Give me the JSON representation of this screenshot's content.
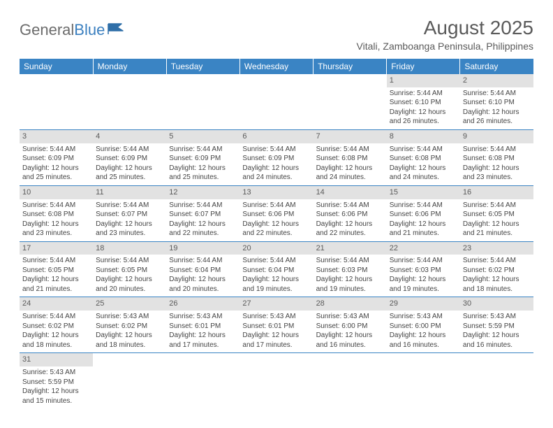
{
  "logo": {
    "text1": "General",
    "text2": "Blue",
    "flag_color": "#2f6fa8"
  },
  "title": "August 2025",
  "location": "Vitali, Zamboanga Peninsula, Philippines",
  "headers": [
    "Sunday",
    "Monday",
    "Tuesday",
    "Wednesday",
    "Thursday",
    "Friday",
    "Saturday"
  ],
  "colors": {
    "header_bg": "#3a84c4",
    "header_fg": "#ffffff",
    "daynum_bg": "#e2e2e2",
    "rule": "#3a84c4",
    "text": "#444444"
  },
  "weeks": [
    [
      {
        "day": "",
        "lines": []
      },
      {
        "day": "",
        "lines": []
      },
      {
        "day": "",
        "lines": []
      },
      {
        "day": "",
        "lines": []
      },
      {
        "day": "",
        "lines": []
      },
      {
        "day": "1",
        "lines": [
          "Sunrise: 5:44 AM",
          "Sunset: 6:10 PM",
          "Daylight: 12 hours",
          "and 26 minutes."
        ]
      },
      {
        "day": "2",
        "lines": [
          "Sunrise: 5:44 AM",
          "Sunset: 6:10 PM",
          "Daylight: 12 hours",
          "and 26 minutes."
        ]
      }
    ],
    [
      {
        "day": "3",
        "lines": [
          "Sunrise: 5:44 AM",
          "Sunset: 6:09 PM",
          "Daylight: 12 hours",
          "and 25 minutes."
        ]
      },
      {
        "day": "4",
        "lines": [
          "Sunrise: 5:44 AM",
          "Sunset: 6:09 PM",
          "Daylight: 12 hours",
          "and 25 minutes."
        ]
      },
      {
        "day": "5",
        "lines": [
          "Sunrise: 5:44 AM",
          "Sunset: 6:09 PM",
          "Daylight: 12 hours",
          "and 25 minutes."
        ]
      },
      {
        "day": "6",
        "lines": [
          "Sunrise: 5:44 AM",
          "Sunset: 6:09 PM",
          "Daylight: 12 hours",
          "and 24 minutes."
        ]
      },
      {
        "day": "7",
        "lines": [
          "Sunrise: 5:44 AM",
          "Sunset: 6:08 PM",
          "Daylight: 12 hours",
          "and 24 minutes."
        ]
      },
      {
        "day": "8",
        "lines": [
          "Sunrise: 5:44 AM",
          "Sunset: 6:08 PM",
          "Daylight: 12 hours",
          "and 24 minutes."
        ]
      },
      {
        "day": "9",
        "lines": [
          "Sunrise: 5:44 AM",
          "Sunset: 6:08 PM",
          "Daylight: 12 hours",
          "and 23 minutes."
        ]
      }
    ],
    [
      {
        "day": "10",
        "lines": [
          "Sunrise: 5:44 AM",
          "Sunset: 6:08 PM",
          "Daylight: 12 hours",
          "and 23 minutes."
        ]
      },
      {
        "day": "11",
        "lines": [
          "Sunrise: 5:44 AM",
          "Sunset: 6:07 PM",
          "Daylight: 12 hours",
          "and 23 minutes."
        ]
      },
      {
        "day": "12",
        "lines": [
          "Sunrise: 5:44 AM",
          "Sunset: 6:07 PM",
          "Daylight: 12 hours",
          "and 22 minutes."
        ]
      },
      {
        "day": "13",
        "lines": [
          "Sunrise: 5:44 AM",
          "Sunset: 6:06 PM",
          "Daylight: 12 hours",
          "and 22 minutes."
        ]
      },
      {
        "day": "14",
        "lines": [
          "Sunrise: 5:44 AM",
          "Sunset: 6:06 PM",
          "Daylight: 12 hours",
          "and 22 minutes."
        ]
      },
      {
        "day": "15",
        "lines": [
          "Sunrise: 5:44 AM",
          "Sunset: 6:06 PM",
          "Daylight: 12 hours",
          "and 21 minutes."
        ]
      },
      {
        "day": "16",
        "lines": [
          "Sunrise: 5:44 AM",
          "Sunset: 6:05 PM",
          "Daylight: 12 hours",
          "and 21 minutes."
        ]
      }
    ],
    [
      {
        "day": "17",
        "lines": [
          "Sunrise: 5:44 AM",
          "Sunset: 6:05 PM",
          "Daylight: 12 hours",
          "and 21 minutes."
        ]
      },
      {
        "day": "18",
        "lines": [
          "Sunrise: 5:44 AM",
          "Sunset: 6:05 PM",
          "Daylight: 12 hours",
          "and 20 minutes."
        ]
      },
      {
        "day": "19",
        "lines": [
          "Sunrise: 5:44 AM",
          "Sunset: 6:04 PM",
          "Daylight: 12 hours",
          "and 20 minutes."
        ]
      },
      {
        "day": "20",
        "lines": [
          "Sunrise: 5:44 AM",
          "Sunset: 6:04 PM",
          "Daylight: 12 hours",
          "and 19 minutes."
        ]
      },
      {
        "day": "21",
        "lines": [
          "Sunrise: 5:44 AM",
          "Sunset: 6:03 PM",
          "Daylight: 12 hours",
          "and 19 minutes."
        ]
      },
      {
        "day": "22",
        "lines": [
          "Sunrise: 5:44 AM",
          "Sunset: 6:03 PM",
          "Daylight: 12 hours",
          "and 19 minutes."
        ]
      },
      {
        "day": "23",
        "lines": [
          "Sunrise: 5:44 AM",
          "Sunset: 6:02 PM",
          "Daylight: 12 hours",
          "and 18 minutes."
        ]
      }
    ],
    [
      {
        "day": "24",
        "lines": [
          "Sunrise: 5:44 AM",
          "Sunset: 6:02 PM",
          "Daylight: 12 hours",
          "and 18 minutes."
        ]
      },
      {
        "day": "25",
        "lines": [
          "Sunrise: 5:43 AM",
          "Sunset: 6:02 PM",
          "Daylight: 12 hours",
          "and 18 minutes."
        ]
      },
      {
        "day": "26",
        "lines": [
          "Sunrise: 5:43 AM",
          "Sunset: 6:01 PM",
          "Daylight: 12 hours",
          "and 17 minutes."
        ]
      },
      {
        "day": "27",
        "lines": [
          "Sunrise: 5:43 AM",
          "Sunset: 6:01 PM",
          "Daylight: 12 hours",
          "and 17 minutes."
        ]
      },
      {
        "day": "28",
        "lines": [
          "Sunrise: 5:43 AM",
          "Sunset: 6:00 PM",
          "Daylight: 12 hours",
          "and 16 minutes."
        ]
      },
      {
        "day": "29",
        "lines": [
          "Sunrise: 5:43 AM",
          "Sunset: 6:00 PM",
          "Daylight: 12 hours",
          "and 16 minutes."
        ]
      },
      {
        "day": "30",
        "lines": [
          "Sunrise: 5:43 AM",
          "Sunset: 5:59 PM",
          "Daylight: 12 hours",
          "and 16 minutes."
        ]
      }
    ],
    [
      {
        "day": "31",
        "lines": [
          "Sunrise: 5:43 AM",
          "Sunset: 5:59 PM",
          "Daylight: 12 hours",
          "and 15 minutes."
        ]
      },
      {
        "day": "",
        "lines": []
      },
      {
        "day": "",
        "lines": []
      },
      {
        "day": "",
        "lines": []
      },
      {
        "day": "",
        "lines": []
      },
      {
        "day": "",
        "lines": []
      },
      {
        "day": "",
        "lines": []
      }
    ]
  ]
}
